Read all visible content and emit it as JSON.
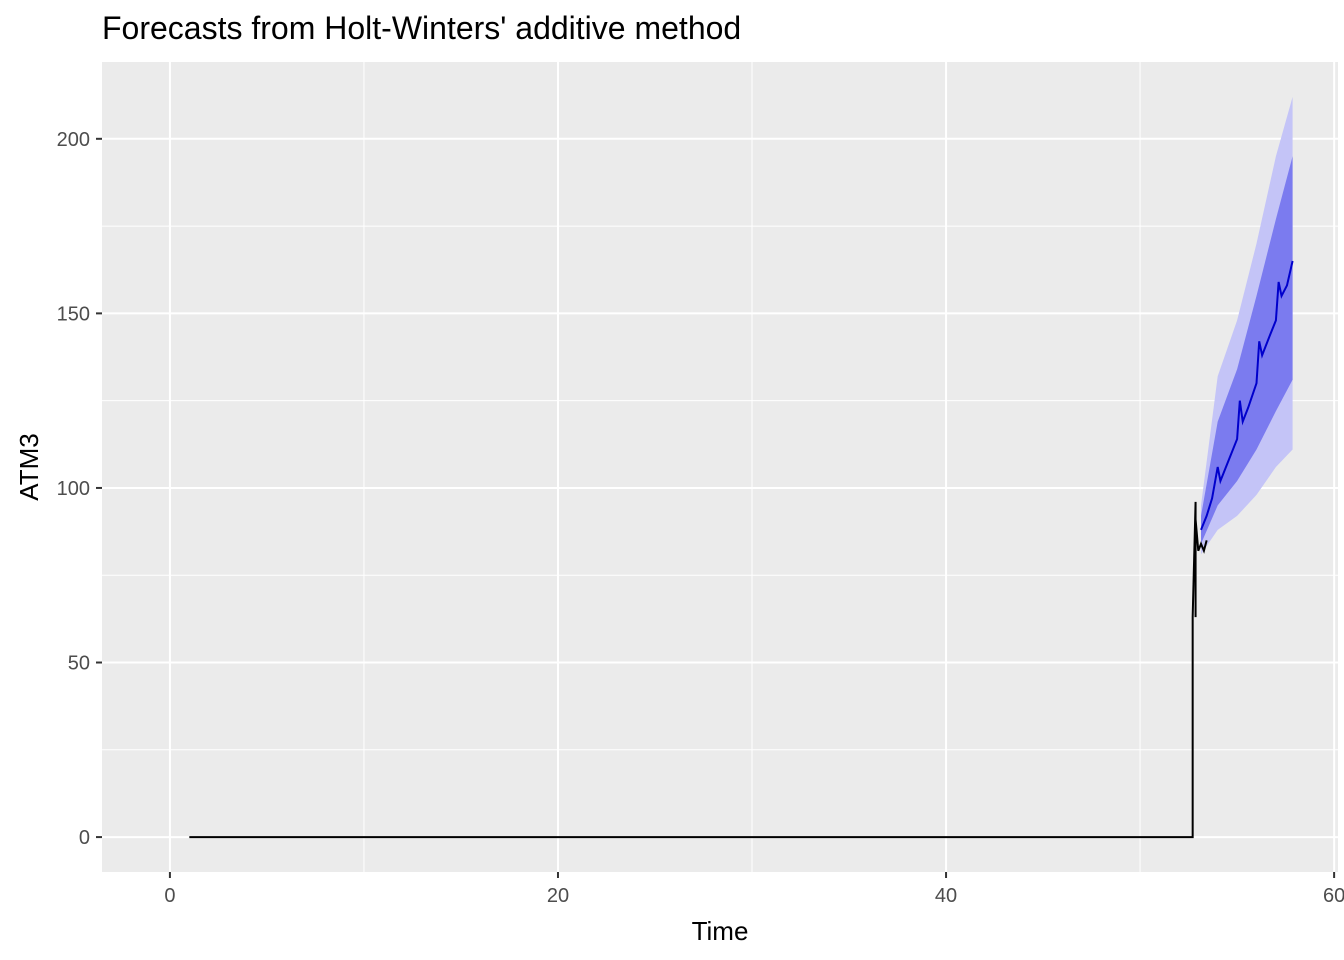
{
  "chart_data": {
    "type": "line",
    "title": "Forecasts from Holt-Winters' additive method",
    "xlabel": "Time",
    "ylabel": "ATM3",
    "xlim": [
      -3.5,
      60.2
    ],
    "ylim": [
      -10,
      222
    ],
    "x_ticks": [
      0,
      20,
      40,
      60
    ],
    "y_ticks": [
      0,
      50,
      100,
      150,
      200
    ],
    "grid": true,
    "legend": "none",
    "colors": {
      "panel_background": "#ebebeb",
      "grid": "#ffffff",
      "observed_line": "#000000",
      "forecast_line": "#0000cc",
      "band_80": "#7b7bef",
      "band_95": "#c4c4f7"
    },
    "series": [
      {
        "role": "observed",
        "points": [
          [
            1.0,
            0
          ],
          [
            10,
            0
          ],
          [
            20,
            0
          ],
          [
            30,
            0
          ],
          [
            40,
            0
          ],
          [
            50,
            0
          ],
          [
            52.57,
            0
          ],
          [
            52.71,
            0
          ],
          [
            52.71,
            32
          ],
          [
            52.71,
            63
          ],
          [
            52.86,
            96
          ],
          [
            52.86,
            63
          ],
          [
            52.86,
            91
          ],
          [
            53.0,
            82
          ],
          [
            53.14,
            84
          ],
          [
            53.29,
            82
          ],
          [
            53.43,
            85
          ]
        ]
      },
      {
        "role": "forecast",
        "points": [
          [
            53.14,
            88
          ],
          [
            53.43,
            92
          ],
          [
            53.71,
            97
          ],
          [
            54.0,
            106
          ],
          [
            54.14,
            102
          ],
          [
            54.57,
            108
          ],
          [
            55.0,
            114
          ],
          [
            55.14,
            125
          ],
          [
            55.29,
            119
          ],
          [
            55.57,
            123
          ],
          [
            56.0,
            130
          ],
          [
            56.14,
            142
          ],
          [
            56.29,
            138
          ],
          [
            56.71,
            144
          ],
          [
            57.0,
            148
          ],
          [
            57.14,
            159
          ],
          [
            57.29,
            155
          ],
          [
            57.57,
            158
          ],
          [
            57.86,
            165
          ]
        ]
      },
      {
        "role": "prediction_interval_80",
        "lower": [
          [
            53.14,
            84
          ],
          [
            54.0,
            95
          ],
          [
            55.0,
            102
          ],
          [
            56.0,
            111
          ],
          [
            57.0,
            122
          ],
          [
            57.86,
            131
          ]
        ],
        "upper": [
          [
            53.14,
            92
          ],
          [
            54.0,
            119
          ],
          [
            55.0,
            134
          ],
          [
            56.0,
            155
          ],
          [
            57.0,
            177
          ],
          [
            57.86,
            195
          ]
        ]
      },
      {
        "role": "prediction_interval_95",
        "lower": [
          [
            53.14,
            81
          ],
          [
            54.0,
            88
          ],
          [
            55.0,
            92
          ],
          [
            56.0,
            98
          ],
          [
            57.0,
            106
          ],
          [
            57.86,
            111
          ]
        ],
        "upper": [
          [
            53.14,
            95
          ],
          [
            54.0,
            132
          ],
          [
            55.0,
            148
          ],
          [
            56.0,
            170
          ],
          [
            57.0,
            195
          ],
          [
            57.86,
            212
          ]
        ]
      }
    ]
  }
}
